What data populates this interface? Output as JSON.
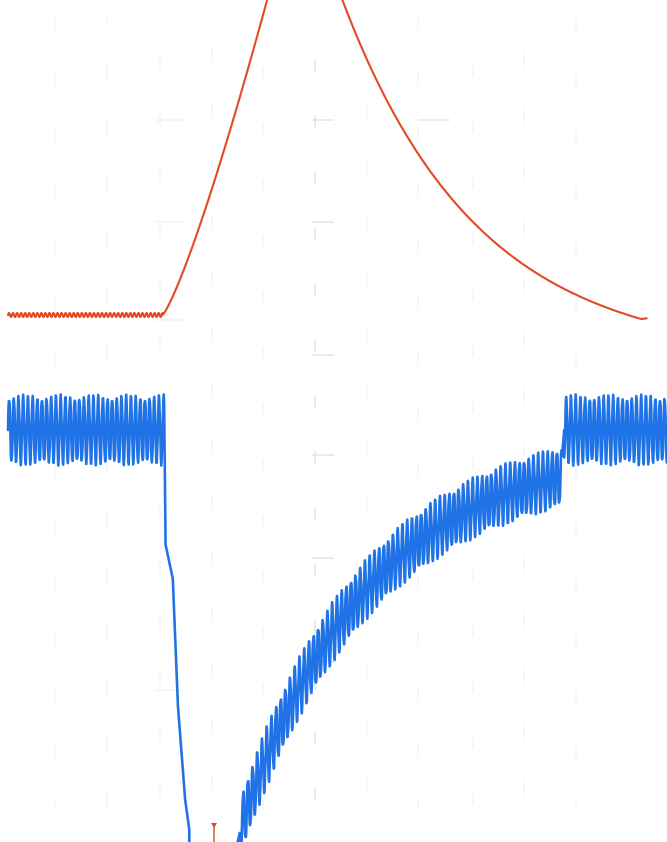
{
  "chart_data": {
    "type": "line",
    "title": "",
    "xlabel": "",
    "ylabel": "",
    "grid": false,
    "legend": "none",
    "series": [
      {
        "color": "#e24a24",
        "baseline_level": 0.0,
        "noise_amplitude": 0.02,
        "baseline_until_x": 1.5,
        "rise_end_x": 2.55,
        "peak_level": 3.2,
        "peak_until_x": 3.2,
        "decay_end_x": 6.15,
        "end_level": -0.04,
        "final_level": 0.0
      },
      {
        "color": "#1f73e6",
        "baseline_level": 0.0,
        "ripple_amplitude": 0.38,
        "ripple_cycles_per_division": 22,
        "baseline_until_x": 1.52,
        "drop_steps": [
          {
            "x": 1.53,
            "level": -1.35
          },
          {
            "x": 1.6,
            "level": -1.75
          },
          {
            "x": 1.65,
            "level": -3.25
          },
          {
            "x": 1.72,
            "level": -4.35
          },
          {
            "x": 1.76,
            "level": -4.7
          }
        ],
        "recovery_start_x": 2.25,
        "recovery_start_level": -4.7,
        "recovery_end_x": 5.38,
        "recovery_end_level": -0.55,
        "return_x": 5.4,
        "end_x": 6.4
      }
    ]
  },
  "icons": {
    "trigger_marker": "trigger-marker-icon"
  },
  "colors": {
    "background": "#ffffff",
    "grid": "#c9d6ea",
    "trigger_marker": "#d9472b"
  }
}
